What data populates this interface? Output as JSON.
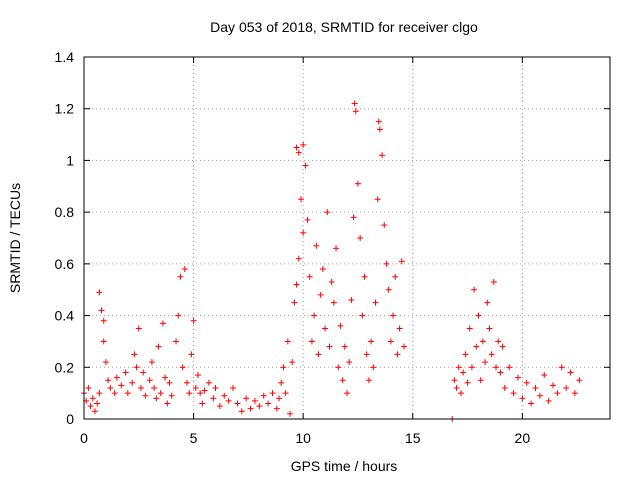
{
  "chart_data": {
    "type": "scatter",
    "title": "Day 053 of 2018, SRMTID for receiver clgo",
    "xlabel": "GPS time / hours",
    "ylabel": "SRMTID / TECUs",
    "xlim": [
      0,
      24
    ],
    "ylim": [
      0,
      1.4
    ],
    "xticks": [
      0,
      5,
      10,
      15,
      20
    ],
    "yticks": [
      0,
      0.2,
      0.4,
      0.6,
      0.8,
      1,
      1.2,
      1.4
    ],
    "xtick_labels": [
      "0",
      "5",
      "10",
      "15",
      "20"
    ],
    "ytick_labels": [
      "0",
      "0.2",
      "0.4",
      "0.6",
      "0.8",
      "1",
      "1.2",
      "1.4"
    ],
    "grid": true,
    "marker": "+",
    "color": "#ff0000",
    "series": [
      {
        "name": "SRMTID",
        "points": [
          [
            0.0,
            0.1
          ],
          [
            0.1,
            0.07
          ],
          [
            0.2,
            0.12
          ],
          [
            0.3,
            0.05
          ],
          [
            0.4,
            0.08
          ],
          [
            0.5,
            0.03
          ],
          [
            0.6,
            0.06
          ],
          [
            0.7,
            0.1
          ],
          [
            0.7,
            0.49
          ],
          [
            0.8,
            0.42
          ],
          [
            0.9,
            0.38
          ],
          [
            0.9,
            0.3
          ],
          [
            1.0,
            0.22
          ],
          [
            1.1,
            0.15
          ],
          [
            1.2,
            0.12
          ],
          [
            1.4,
            0.1
          ],
          [
            1.5,
            0.16
          ],
          [
            1.7,
            0.13
          ],
          [
            1.9,
            0.18
          ],
          [
            2.0,
            0.1
          ],
          [
            2.2,
            0.14
          ],
          [
            2.3,
            0.25
          ],
          [
            2.4,
            0.2
          ],
          [
            2.5,
            0.35
          ],
          [
            2.6,
            0.12
          ],
          [
            2.7,
            0.18
          ],
          [
            2.8,
            0.09
          ],
          [
            3.0,
            0.15
          ],
          [
            3.1,
            0.22
          ],
          [
            3.2,
            0.12
          ],
          [
            3.3,
            0.08
          ],
          [
            3.4,
            0.28
          ],
          [
            3.5,
            0.1
          ],
          [
            3.6,
            0.37
          ],
          [
            3.7,
            0.16
          ],
          [
            3.8,
            0.06
          ],
          [
            3.9,
            0.14
          ],
          [
            4.0,
            0.09
          ],
          [
            4.2,
            0.3
          ],
          [
            4.3,
            0.4
          ],
          [
            4.4,
            0.55
          ],
          [
            4.5,
            0.2
          ],
          [
            4.6,
            0.58
          ],
          [
            4.7,
            0.14
          ],
          [
            4.8,
            0.1
          ],
          [
            4.9,
            0.25
          ],
          [
            5.0,
            0.38
          ],
          [
            5.1,
            0.12
          ],
          [
            5.2,
            0.17
          ],
          [
            5.3,
            0.1
          ],
          [
            5.4,
            0.06
          ],
          [
            5.5,
            0.11
          ],
          [
            5.7,
            0.14
          ],
          [
            5.9,
            0.08
          ],
          [
            6.0,
            0.12
          ],
          [
            6.2,
            0.05
          ],
          [
            6.4,
            0.09
          ],
          [
            6.6,
            0.07
          ],
          [
            6.8,
            0.12
          ],
          [
            7.0,
            0.06
          ],
          [
            7.2,
            0.03
          ],
          [
            7.4,
            0.08
          ],
          [
            7.6,
            0.04
          ],
          [
            7.8,
            0.07
          ],
          [
            8.0,
            0.05
          ],
          [
            8.2,
            0.09
          ],
          [
            8.4,
            0.06
          ],
          [
            8.6,
            0.1
          ],
          [
            8.8,
            0.04
          ],
          [
            8.9,
            0.08
          ],
          [
            9.0,
            0.14
          ],
          [
            9.1,
            0.2
          ],
          [
            9.2,
            0.1
          ],
          [
            9.3,
            0.3
          ],
          [
            9.4,
            0.02
          ],
          [
            9.5,
            0.22
          ],
          [
            9.6,
            0.45
          ],
          [
            9.7,
            0.52
          ],
          [
            9.7,
            1.05
          ],
          [
            9.8,
            1.03
          ],
          [
            9.8,
            0.62
          ],
          [
            9.9,
            0.85
          ],
          [
            10.0,
            1.06
          ],
          [
            10.0,
            0.72
          ],
          [
            10.1,
            0.98
          ],
          [
            10.2,
            0.77
          ],
          [
            10.3,
            0.55
          ],
          [
            10.4,
            0.3
          ],
          [
            10.5,
            0.4
          ],
          [
            10.6,
            0.67
          ],
          [
            10.7,
            0.25
          ],
          [
            10.8,
            0.48
          ],
          [
            10.9,
            0.58
          ],
          [
            11.0,
            0.35
          ],
          [
            11.1,
            0.8
          ],
          [
            11.2,
            0.28
          ],
          [
            11.3,
            0.53
          ],
          [
            11.4,
            0.45
          ],
          [
            11.5,
            0.66
          ],
          [
            11.6,
            0.2
          ],
          [
            11.7,
            0.36
          ],
          [
            11.8,
            0.15
          ],
          [
            11.9,
            0.28
          ],
          [
            12.0,
            0.1
          ],
          [
            12.1,
            0.22
          ],
          [
            12.2,
            0.46
          ],
          [
            12.3,
            0.78
          ],
          [
            12.35,
            1.22
          ],
          [
            12.4,
            1.19
          ],
          [
            12.5,
            0.91
          ],
          [
            12.6,
            0.7
          ],
          [
            12.7,
            0.4
          ],
          [
            12.8,
            0.55
          ],
          [
            12.9,
            0.25
          ],
          [
            13.0,
            0.15
          ],
          [
            13.1,
            0.3
          ],
          [
            13.2,
            0.2
          ],
          [
            13.3,
            0.45
          ],
          [
            13.4,
            0.85
          ],
          [
            13.45,
            1.15
          ],
          [
            13.5,
            1.12
          ],
          [
            13.6,
            1.02
          ],
          [
            13.7,
            0.75
          ],
          [
            13.8,
            0.6
          ],
          [
            13.9,
            0.5
          ],
          [
            14.0,
            0.3
          ],
          [
            14.1,
            0.4
          ],
          [
            14.2,
            0.55
          ],
          [
            14.3,
            0.25
          ],
          [
            14.4,
            0.35
          ],
          [
            14.5,
            0.61
          ],
          [
            14.6,
            0.28
          ],
          [
            16.8,
            0.0
          ],
          [
            16.9,
            0.15
          ],
          [
            17.0,
            0.12
          ],
          [
            17.1,
            0.2
          ],
          [
            17.2,
            0.1
          ],
          [
            17.3,
            0.18
          ],
          [
            17.4,
            0.25
          ],
          [
            17.5,
            0.14
          ],
          [
            17.6,
            0.35
          ],
          [
            17.7,
            0.2
          ],
          [
            17.8,
            0.5
          ],
          [
            17.9,
            0.28
          ],
          [
            18.0,
            0.4
          ],
          [
            18.1,
            0.15
          ],
          [
            18.2,
            0.3
          ],
          [
            18.3,
            0.22
          ],
          [
            18.4,
            0.45
          ],
          [
            18.5,
            0.35
          ],
          [
            18.6,
            0.25
          ],
          [
            18.7,
            0.53
          ],
          [
            18.8,
            0.2
          ],
          [
            18.9,
            0.3
          ],
          [
            19.0,
            0.18
          ],
          [
            19.1,
            0.28
          ],
          [
            19.2,
            0.12
          ],
          [
            19.4,
            0.2
          ],
          [
            19.6,
            0.1
          ],
          [
            19.8,
            0.16
          ],
          [
            20.0,
            0.08
          ],
          [
            20.2,
            0.14
          ],
          [
            20.4,
            0.06
          ],
          [
            20.6,
            0.12
          ],
          [
            20.8,
            0.09
          ],
          [
            21.0,
            0.17
          ],
          [
            21.2,
            0.07
          ],
          [
            21.4,
            0.13
          ],
          [
            21.6,
            0.1
          ],
          [
            21.8,
            0.2
          ],
          [
            22.0,
            0.12
          ],
          [
            22.2,
            0.18
          ],
          [
            22.4,
            0.1
          ],
          [
            22.6,
            0.15
          ]
        ]
      }
    ]
  }
}
